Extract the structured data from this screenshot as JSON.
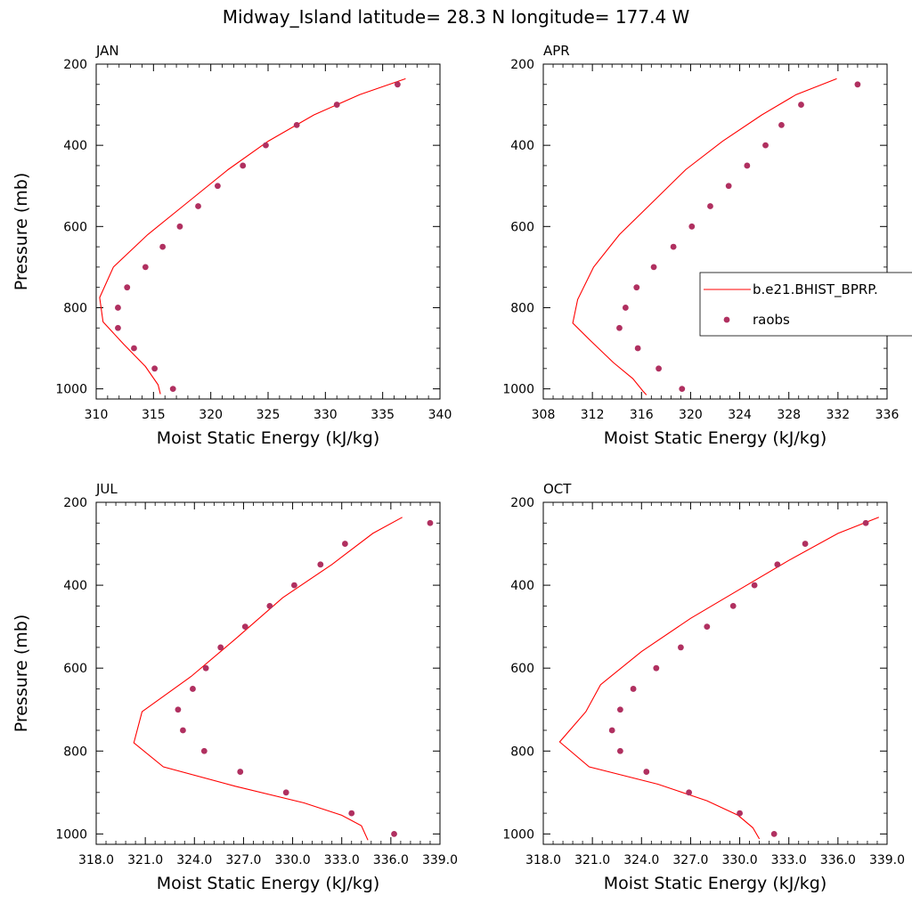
{
  "title": "Midway_Island  latitude= 28.3 N longitude= 177.4 W",
  "legend": {
    "position": "right, between the APR panel and the page edge",
    "entries": [
      {
        "label": "b.e21.BHIST_BPRP.",
        "style": "line",
        "color": "#ff0000"
      },
      {
        "label": "raobs",
        "style": "marker",
        "color": "#b03060"
      }
    ]
  },
  "chart_data": [
    {
      "type": "line",
      "title": "JAN",
      "xlabel": "Moist Static Energy (kJ/kg)",
      "ylabel": "Pressure (mb)",
      "xlim": [
        310,
        340
      ],
      "ylim": [
        200,
        1025
      ],
      "y_inverted": true,
      "xticks": [
        310,
        315,
        320,
        325,
        330,
        335,
        340
      ],
      "xtick_labels": [
        "310",
        "315",
        "320",
        "325",
        "330",
        "335",
        "340"
      ],
      "yticks": [
        200,
        400,
        600,
        800,
        1000
      ],
      "ytick_labels": [
        "200",
        "400",
        "600",
        "800",
        "1000"
      ],
      "series": [
        {
          "name": "b.e21.BHIST_BPRP.",
          "kind": "line",
          "color": "#ff0000",
          "points": [
            [
              337.0,
              236
            ],
            [
              333.0,
              275
            ],
            [
              329.0,
              325
            ],
            [
              325.0,
              390
            ],
            [
              321.5,
              460
            ],
            [
              318.0,
              540
            ],
            [
              314.5,
              620
            ],
            [
              311.5,
              700
            ],
            [
              310.3,
              775
            ],
            [
              310.6,
              835
            ],
            [
              312.4,
              890
            ],
            [
              314.3,
              945
            ],
            [
              315.4,
              990
            ],
            [
              315.6,
              1013
            ]
          ]
        },
        {
          "name": "raobs",
          "kind": "scatter",
          "color": "#b03060",
          "points": [
            [
              336.3,
              250
            ],
            [
              331.0,
              300
            ],
            [
              327.5,
              350
            ],
            [
              324.8,
              400
            ],
            [
              322.8,
              450
            ],
            [
              320.6,
              500
            ],
            [
              318.9,
              550
            ],
            [
              317.3,
              600
            ],
            [
              315.8,
              650
            ],
            [
              314.3,
              700
            ],
            [
              312.7,
              750
            ],
            [
              311.9,
              800
            ],
            [
              311.9,
              850
            ],
            [
              313.3,
              900
            ],
            [
              315.1,
              950
            ],
            [
              316.7,
              1000
            ]
          ]
        }
      ]
    },
    {
      "type": "line",
      "title": "APR",
      "xlabel": "Moist Static Energy (kJ/kg)",
      "ylabel": "",
      "xlim": [
        308,
        336
      ],
      "ylim": [
        200,
        1025
      ],
      "y_inverted": true,
      "xticks": [
        308,
        312,
        316,
        320,
        324,
        328,
        332,
        336
      ],
      "xtick_labels": [
        "308",
        "312",
        "316",
        "320",
        "324",
        "328",
        "332",
        "336"
      ],
      "yticks": [
        200,
        400,
        600,
        800,
        1000
      ],
      "ytick_labels": [
        "200",
        "400",
        "600",
        "800",
        "1000"
      ],
      "series": [
        {
          "name": "b.e21.BHIST_BPRP.",
          "kind": "line",
          "color": "#ff0000",
          "points": [
            [
              331.9,
              236
            ],
            [
              328.6,
              275
            ],
            [
              325.8,
              325
            ],
            [
              322.6,
              390
            ],
            [
              319.6,
              460
            ],
            [
              316.9,
              540
            ],
            [
              314.2,
              620
            ],
            [
              312.1,
              700
            ],
            [
              310.8,
              780
            ],
            [
              310.4,
              838
            ],
            [
              311.8,
              880
            ],
            [
              313.7,
              935
            ],
            [
              315.3,
              975
            ],
            [
              316.1,
              1005
            ],
            [
              316.4,
              1015
            ]
          ]
        },
        {
          "name": "raobs",
          "kind": "scatter",
          "color": "#b03060",
          "points": [
            [
              333.6,
              250
            ],
            [
              329.0,
              300
            ],
            [
              327.4,
              350
            ],
            [
              326.1,
              400
            ],
            [
              324.6,
              450
            ],
            [
              323.1,
              500
            ],
            [
              321.6,
              550
            ],
            [
              320.1,
              600
            ],
            [
              318.6,
              650
            ],
            [
              317.0,
              700
            ],
            [
              315.6,
              750
            ],
            [
              314.7,
              800
            ],
            [
              314.2,
              850
            ],
            [
              315.7,
              900
            ],
            [
              317.4,
              950
            ],
            [
              319.3,
              1000
            ]
          ]
        }
      ]
    },
    {
      "type": "line",
      "title": "JUL",
      "xlabel": "Moist Static Energy (kJ/kg)",
      "ylabel": "Pressure (mb)",
      "xlim": [
        318,
        339
      ],
      "ylim": [
        200,
        1025
      ],
      "y_inverted": true,
      "xticks": [
        318,
        321,
        324,
        327,
        330,
        333,
        336,
        339
      ],
      "xtick_labels": [
        "318.0",
        "321.0",
        "324.0",
        "327.0",
        "330.0",
        "333.0",
        "336.0",
        "339.0"
      ],
      "yticks": [
        200,
        400,
        600,
        800,
        1000
      ],
      "ytick_labels": [
        "200",
        "400",
        "600",
        "800",
        "1000"
      ],
      "series": [
        {
          "name": "b.e21.BHIST_BPRP.",
          "kind": "line",
          "color": "#ff0000",
          "points": [
            [
              336.7,
              236
            ],
            [
              334.9,
              275
            ],
            [
              332.4,
              350
            ],
            [
              329.4,
              430
            ],
            [
              326.5,
              530
            ],
            [
              323.8,
              620
            ],
            [
              320.8,
              705
            ],
            [
              320.3,
              780
            ],
            [
              322.1,
              838
            ],
            [
              326.5,
              885
            ],
            [
              330.7,
              925
            ],
            [
              333.0,
              955
            ],
            [
              334.2,
              980
            ],
            [
              334.6,
              1015
            ]
          ]
        },
        {
          "name": "raobs",
          "kind": "scatter",
          "color": "#b03060",
          "points": [
            [
              338.4,
              250
            ],
            [
              333.2,
              300
            ],
            [
              331.7,
              350
            ],
            [
              330.1,
              400
            ],
            [
              328.6,
              450
            ],
            [
              327.1,
              500
            ],
            [
              325.6,
              550
            ],
            [
              324.7,
              600
            ],
            [
              323.9,
              650
            ],
            [
              323.0,
              700
            ],
            [
              323.3,
              750
            ],
            [
              324.6,
              800
            ],
            [
              326.8,
              850
            ],
            [
              329.6,
              900
            ],
            [
              333.6,
              950
            ],
            [
              336.2,
              1000
            ]
          ]
        }
      ]
    },
    {
      "type": "line",
      "title": "OCT",
      "xlabel": "Moist Static Energy (kJ/kg)",
      "ylabel": "",
      "xlim": [
        318,
        339
      ],
      "ylim": [
        200,
        1025
      ],
      "y_inverted": true,
      "xticks": [
        318,
        321,
        324,
        327,
        330,
        333,
        336,
        339
      ],
      "xtick_labels": [
        "318.0",
        "321.0",
        "324.0",
        "327.0",
        "330.0",
        "333.0",
        "336.0",
        "339.0"
      ],
      "yticks": [
        200,
        400,
        600,
        800,
        1000
      ],
      "ytick_labels": [
        "200",
        "400",
        "600",
        "800",
        "1000"
      ],
      "series": [
        {
          "name": "b.e21.BHIST_BPRP.",
          "kind": "line",
          "color": "#ff0000",
          "points": [
            [
              338.5,
              236
            ],
            [
              336.0,
              275
            ],
            [
              333.0,
              340
            ],
            [
              330.0,
              410
            ],
            [
              327.0,
              480
            ],
            [
              324.0,
              560
            ],
            [
              321.5,
              640
            ],
            [
              320.6,
              705
            ],
            [
              319.0,
              778
            ],
            [
              320.8,
              838
            ],
            [
              325.0,
              880
            ],
            [
              328.0,
              920
            ],
            [
              329.9,
              955
            ],
            [
              330.8,
              985
            ],
            [
              331.2,
              1012
            ]
          ]
        },
        {
          "name": "raobs",
          "kind": "scatter",
          "color": "#b03060",
          "points": [
            [
              337.7,
              250
            ],
            [
              334.0,
              300
            ],
            [
              332.3,
              350
            ],
            [
              330.9,
              400
            ],
            [
              329.6,
              450
            ],
            [
              328.0,
              500
            ],
            [
              326.4,
              550
            ],
            [
              324.9,
              600
            ],
            [
              323.5,
              650
            ],
            [
              322.7,
              700
            ],
            [
              322.2,
              750
            ],
            [
              322.7,
              800
            ],
            [
              324.3,
              850
            ],
            [
              326.9,
              900
            ],
            [
              330.0,
              950
            ],
            [
              332.1,
              1000
            ]
          ]
        }
      ]
    }
  ]
}
